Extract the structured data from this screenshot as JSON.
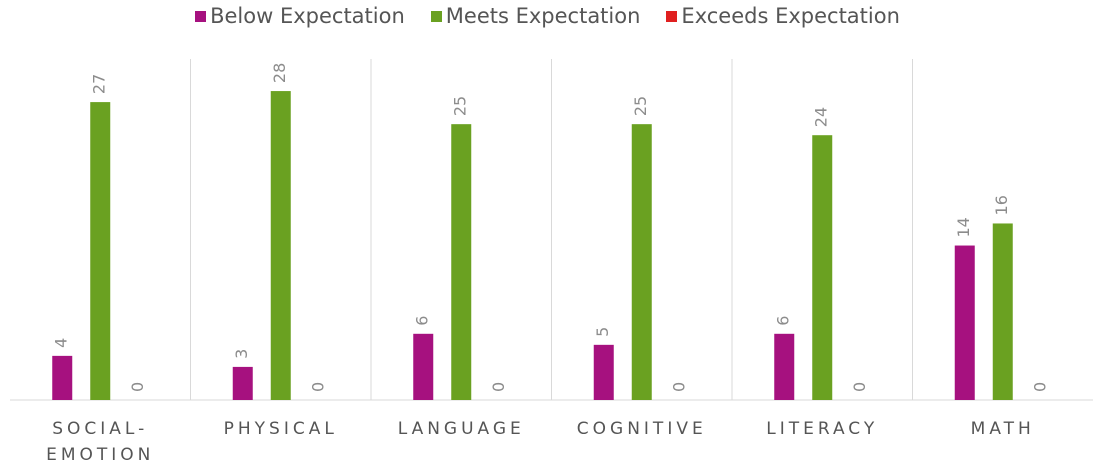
{
  "chart_data": {
    "type": "bar",
    "categories": [
      "SOCIAL-EMOTION",
      "PHYSICAL",
      "LANGUAGE",
      "COGNITIVE",
      "LITERACY",
      "MATH"
    ],
    "series": [
      {
        "name": "Below Expectation",
        "color": "#a6117f",
        "values": [
          4,
          3,
          6,
          5,
          6,
          14
        ]
      },
      {
        "name": "Meets Expectation",
        "color": "#6aa121",
        "values": [
          27,
          28,
          25,
          25,
          24,
          16
        ]
      },
      {
        "name": "Exceeds Expectation",
        "color": "#e02020",
        "values": [
          0,
          0,
          0,
          0,
          0,
          0
        ]
      }
    ],
    "ylim": [
      0,
      30
    ],
    "legend": "top",
    "grid": false
  }
}
